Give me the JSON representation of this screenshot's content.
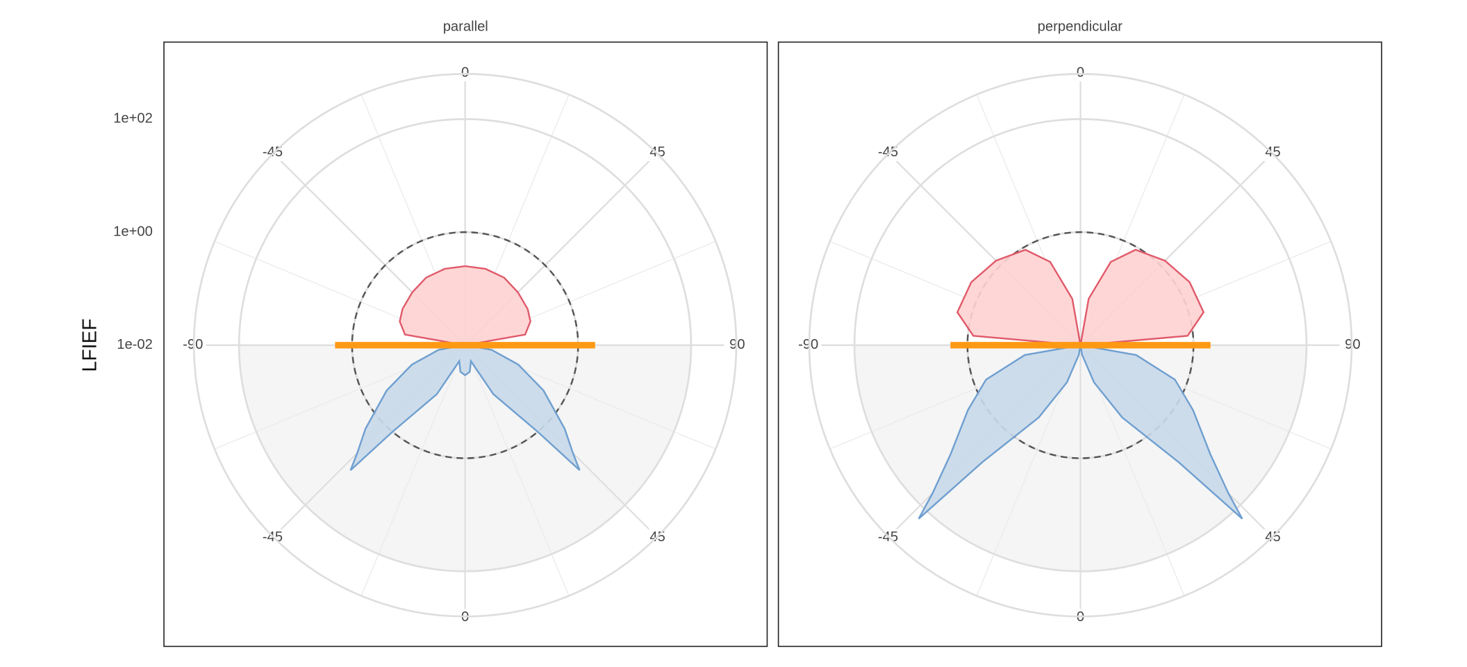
{
  "chart_data": [
    {
      "type": "polar",
      "title": "parallel",
      "ylabel": "LFIEF",
      "show_ytick_labels": true,
      "log_scale": true,
      "ylim": [
        0.01,
        630
      ],
      "yticks": [
        {
          "value": 100,
          "label": "1e+02"
        },
        {
          "value": 1,
          "label": "1e+00"
        },
        {
          "value": 0.01,
          "label": "1e-02"
        }
      ],
      "xticks": [
        -90,
        -45,
        0,
        45,
        90
      ],
      "reference_circle": 1,
      "lower_shade": 100,
      "series": [
        {
          "hemisphere": "upper",
          "color": "#e05a6a",
          "fill": "#ffd2d2",
          "x": [
            -90,
            -80,
            -70,
            -60,
            -45,
            -30,
            -15,
            0,
            15,
            30,
            45,
            60,
            70,
            80,
            90
          ],
          "values": [
            0.01,
            0.12,
            0.17,
            0.19,
            0.21,
            0.24,
            0.25,
            0.25,
            0.25,
            0.24,
            0.21,
            0.19,
            0.17,
            0.12,
            0.01
          ]
        },
        {
          "hemisphere": "lower",
          "color": "#6f9fd0",
          "fill": "#c9d9ea",
          "x": [
            -90,
            -80,
            -70,
            -60,
            -50,
            -45,
            -42.5,
            -40,
            -30,
            -20,
            -10,
            0,
            10,
            20,
            30,
            40,
            42.5,
            45,
            50,
            60,
            70,
            80,
            90
          ],
          "values": [
            0.01,
            0.03,
            0.1,
            0.4,
            2,
            5,
            10,
            1,
            0.1,
            0.02,
            0.03,
            0.034,
            0.03,
            0.02,
            0.1,
            1,
            10,
            5,
            2,
            0.4,
            0.1,
            0.03,
            0.01
          ]
        },
        {
          "hemisphere": "upper",
          "color": "#ff9914",
          "line_width": 7,
          "x": [
            -90,
            90
          ],
          "values": [
            2,
            2
          ]
        }
      ]
    },
    {
      "type": "polar",
      "title": "perpendicular",
      "show_ytick_labels": false,
      "log_scale": true,
      "ylim": [
        0.01,
        630
      ],
      "yticks": [
        {
          "value": 100,
          "label": "1e+02"
        },
        {
          "value": 1,
          "label": "1e+00"
        },
        {
          "value": 0.01,
          "label": "1e-02"
        }
      ],
      "xticks": [
        -90,
        -45,
        0,
        45,
        90
      ],
      "reference_circle": 1,
      "lower_shade": 100,
      "series": [
        {
          "hemisphere": "upper",
          "color": "#e05a6a",
          "fill": "#ffd2d2",
          "x": [
            -90,
            -85,
            -75,
            -60,
            -45,
            -30,
            -20,
            -10,
            0,
            10,
            20,
            30,
            45,
            60,
            75,
            85,
            90
          ],
          "values": [
            0.01,
            0.8,
            1.8,
            1.7,
            1.3,
            0.89,
            0.37,
            0.068,
            0.01,
            0.068,
            0.37,
            0.89,
            1.3,
            1.7,
            1.8,
            0.8,
            0.01
          ]
        },
        {
          "hemisphere": "lower",
          "color": "#6f9fd0",
          "fill": "#c9d9ea",
          "x": [
            -90,
            -80,
            -70,
            -60,
            -50,
            -45,
            -43,
            -40,
            -30,
            -20,
            -10,
            0,
            10,
            20,
            30,
            40,
            43,
            45,
            50,
            60,
            70,
            80,
            90
          ],
          "values": [
            0.01,
            0.1,
            0.6,
            2,
            10,
            50,
            158,
            5,
            0.3,
            0.05,
            0.015,
            0.01,
            0.015,
            0.05,
            0.3,
            5,
            158,
            50,
            10,
            2,
            0.6,
            0.1,
            0.01
          ]
        },
        {
          "hemisphere": "upper",
          "color": "#ff9914",
          "line_width": 7,
          "x": [
            -90,
            90
          ],
          "values": [
            2,
            2
          ]
        }
      ]
    }
  ]
}
